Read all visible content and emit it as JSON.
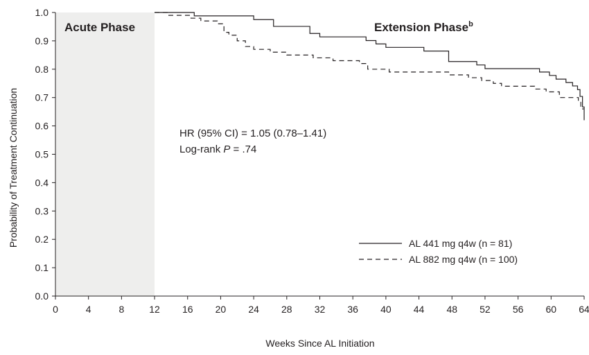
{
  "chart_data": {
    "type": "line",
    "subtype": "kaplan-meier",
    "xlabel": "Weeks Since AL Initiation",
    "ylabel": "Probability of Treatment Continuation",
    "xlim": [
      0,
      64
    ],
    "ylim": [
      0.0,
      1.0
    ],
    "xticks": [
      0,
      4,
      8,
      12,
      16,
      20,
      24,
      28,
      32,
      36,
      40,
      44,
      48,
      52,
      56,
      60,
      64
    ],
    "yticks": [
      "0.0",
      "0.1",
      "0.2",
      "0.3",
      "0.4",
      "0.5",
      "0.6",
      "0.7",
      "0.8",
      "0.9",
      "1.0"
    ],
    "grid": false,
    "legend_position": "bottom-right",
    "shaded_region": {
      "x_start": 0,
      "x_end": 12,
      "color": "#eeeeed",
      "label": "Acute Phase"
    },
    "phase_labels": {
      "acute": "Acute Phase",
      "extension": "Extension Phase",
      "extension_superscript": "b"
    },
    "annotations": {
      "hr": "HR (95% CI) = 1.05 (0.78–1.41)",
      "logrank_prefix": "Log-rank ",
      "logrank_p": "P",
      "logrank_value": " = .74"
    },
    "series": [
      {
        "name": "AL 441 mg q4w (n = 81)",
        "style": "solid",
        "color": "#231f20",
        "points": [
          [
            12,
            1.0
          ],
          [
            16.8,
            1.0
          ],
          [
            16.8,
            0.988
          ],
          [
            24,
            0.988
          ],
          [
            24,
            0.975
          ],
          [
            26.4,
            0.975
          ],
          [
            26.4,
            0.951
          ],
          [
            30.8,
            0.951
          ],
          [
            30.8,
            0.926
          ],
          [
            32,
            0.926
          ],
          [
            32,
            0.914
          ],
          [
            37.6,
            0.914
          ],
          [
            37.6,
            0.901
          ],
          [
            38.8,
            0.901
          ],
          [
            38.8,
            0.889
          ],
          [
            40,
            0.889
          ],
          [
            40,
            0.877
          ],
          [
            44.6,
            0.877
          ],
          [
            44.6,
            0.864
          ],
          [
            47.6,
            0.864
          ],
          [
            47.6,
            0.827
          ],
          [
            51,
            0.827
          ],
          [
            51,
            0.815
          ],
          [
            52,
            0.815
          ],
          [
            52,
            0.802
          ],
          [
            58.6,
            0.802
          ],
          [
            58.6,
            0.79
          ],
          [
            59.8,
            0.79
          ],
          [
            59.8,
            0.778
          ],
          [
            60.6,
            0.778
          ],
          [
            60.6,
            0.765
          ],
          [
            61.8,
            0.765
          ],
          [
            61.8,
            0.753
          ],
          [
            62.6,
            0.753
          ],
          [
            62.6,
            0.741
          ],
          [
            63.2,
            0.741
          ],
          [
            63.2,
            0.728
          ],
          [
            63.5,
            0.728
          ],
          [
            63.5,
            0.704
          ],
          [
            63.8,
            0.704
          ],
          [
            63.8,
            0.667
          ],
          [
            64,
            0.667
          ],
          [
            64,
            0.62
          ]
        ]
      },
      {
        "name": "AL 882 mg q4w (n = 100)",
        "style": "dashed",
        "color": "#231f20",
        "points": [
          [
            12,
            1.0
          ],
          [
            13.6,
            1.0
          ],
          [
            13.6,
            0.99
          ],
          [
            16.4,
            0.99
          ],
          [
            16.4,
            0.98
          ],
          [
            17.6,
            0.98
          ],
          [
            17.6,
            0.97
          ],
          [
            19.6,
            0.97
          ],
          [
            19.6,
            0.96
          ],
          [
            20.4,
            0.96
          ],
          [
            20.4,
            0.93
          ],
          [
            21,
            0.93
          ],
          [
            21,
            0.92
          ],
          [
            22,
            0.92
          ],
          [
            22,
            0.9
          ],
          [
            23,
            0.9
          ],
          [
            23,
            0.88
          ],
          [
            24,
            0.88
          ],
          [
            24,
            0.87
          ],
          [
            26,
            0.87
          ],
          [
            26,
            0.86
          ],
          [
            28,
            0.86
          ],
          [
            28,
            0.85
          ],
          [
            31.2,
            0.85
          ],
          [
            31.2,
            0.84
          ],
          [
            33.6,
            0.84
          ],
          [
            33.6,
            0.83
          ],
          [
            36.8,
            0.83
          ],
          [
            36.8,
            0.82
          ],
          [
            37.8,
            0.82
          ],
          [
            37.8,
            0.8
          ],
          [
            40.4,
            0.8
          ],
          [
            40.4,
            0.79
          ],
          [
            47.6,
            0.79
          ],
          [
            47.6,
            0.78
          ],
          [
            50,
            0.78
          ],
          [
            50,
            0.77
          ],
          [
            51.6,
            0.77
          ],
          [
            51.6,
            0.76
          ],
          [
            53,
            0.76
          ],
          [
            53,
            0.75
          ],
          [
            54,
            0.75
          ],
          [
            54,
            0.74
          ],
          [
            58,
            0.74
          ],
          [
            58,
            0.73
          ],
          [
            59.4,
            0.73
          ],
          [
            59.4,
            0.72
          ],
          [
            61,
            0.72
          ],
          [
            61,
            0.7
          ],
          [
            63.3,
            0.7
          ],
          [
            63.3,
            0.69
          ],
          [
            63.6,
            0.69
          ],
          [
            63.6,
            0.66
          ],
          [
            64,
            0.66
          ]
        ]
      }
    ]
  }
}
